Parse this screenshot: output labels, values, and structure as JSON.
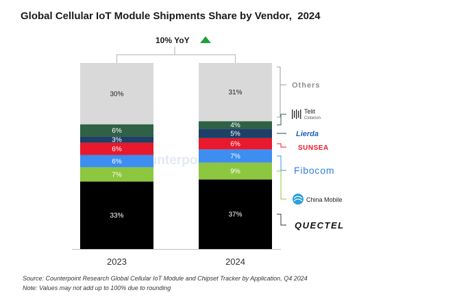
{
  "title": "Global Cellular IoT Module Shipments Share by Vendor,  2024",
  "yoy": {
    "text": "10% YoY",
    "direction": "up",
    "color": "#21a03c"
  },
  "watermark": "Counterpoint",
  "colors": {
    "Quectel": "#000000",
    "China Mobile": "#8dc63f",
    "Fibocom": "#3d8ef0",
    "Sunsea": "#e8192c",
    "Lierda": "#1e3f66",
    "Telit Cinterion": "#2e6145",
    "Others": "#d9d9d9"
  },
  "chart_data": {
    "type": "bar",
    "stacked": true,
    "percent": true,
    "categories": [
      "2023",
      "2024"
    ],
    "series": [
      {
        "name": "Quectel",
        "values": [
          33,
          37
        ]
      },
      {
        "name": "China Mobile",
        "values": [
          7,
          9
        ]
      },
      {
        "name": "Fibocom",
        "values": [
          6,
          7
        ]
      },
      {
        "name": "Sunsea",
        "values": [
          6,
          6
        ]
      },
      {
        "name": "Lierda",
        "values": [
          3,
          5
        ]
      },
      {
        "name": "Telit Cinterion",
        "values": [
          6,
          4
        ]
      },
      {
        "name": "Others",
        "values": [
          30,
          31
        ]
      }
    ],
    "data_labels": [
      [
        "33%",
        "37%"
      ],
      [
        "7%",
        "9%"
      ],
      [
        "6%",
        "7%"
      ],
      [
        "6%",
        "6%"
      ],
      [
        "3%",
        "5%"
      ],
      [
        "6%",
        "4%"
      ],
      [
        "30%",
        "31%"
      ]
    ],
    "legend_labels": {
      "Quectel": "QUECTEL",
      "China Mobile": "China Mobile",
      "Fibocom": "Fibocom",
      "Sunsea": "SUNSEA",
      "Lierda": "Lierda",
      "Telit Cinterion": "Telit\nCinterion",
      "Others": "Others"
    },
    "legend_position": "right",
    "grid": false
  },
  "source_line": "Source: Counterpoint Research Global Cellular IoT Module and Chipset Tracker by Application,  Q4 2024",
  "note_line": "Note: Values may not add up to 100% due to rounding"
}
